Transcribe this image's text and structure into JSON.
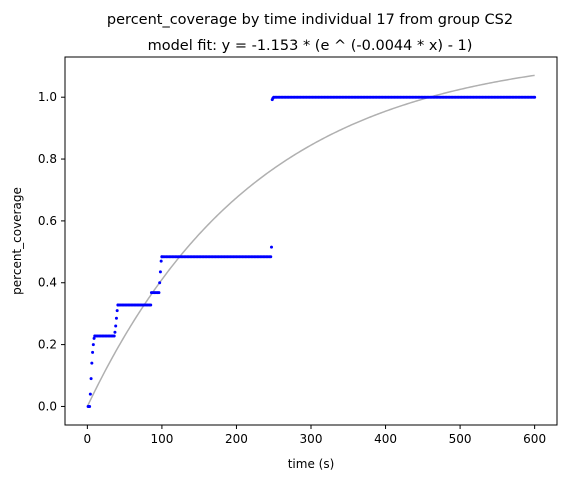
{
  "chart_data": {
    "type": "scatter",
    "title": "percent_coverage by time individual 17 from group CS2",
    "subtitle": "model fit: y = -1.153 * (e ^ (-0.0044 * x) - 1)",
    "xlabel": "time (s)",
    "ylabel": "percent_coverage",
    "xlim": [
      -30,
      630
    ],
    "ylim": [
      -0.06,
      1.13
    ],
    "xticks": [
      0,
      100,
      200,
      300,
      400,
      500,
      600
    ],
    "yticks": [
      0.0,
      0.2,
      0.4,
      0.6,
      0.8,
      1.0
    ],
    "xtick_labels": [
      "0",
      "100",
      "200",
      "300",
      "400",
      "500",
      "600"
    ],
    "ytick_labels": [
      "0.0",
      "0.2",
      "0.4",
      "0.6",
      "0.8",
      "1.0"
    ],
    "grid": false,
    "series": [
      {
        "kind": "points",
        "color": "#0000ff",
        "segments": [
          {
            "x": [
              1,
              2,
              3,
              4,
              5,
              6,
              7,
              8,
              9,
              10
            ],
            "y": [
              0.0,
              0.0,
              0.0,
              0.04,
              0.09,
              0.14,
              0.175,
              0.2,
              0.22,
              0.228
            ]
          },
          {
            "x_start": 10,
            "x_end": 36,
            "x_step": 2,
            "y": 0.228
          },
          {
            "x": [
              37,
              38,
              39,
              40,
              41
            ],
            "y": [
              0.24,
              0.26,
              0.285,
              0.31,
              0.328
            ]
          },
          {
            "x_start": 41,
            "x_end": 85,
            "x_step": 2,
            "y": 0.328
          },
          {
            "x_start": 86,
            "x_end": 96,
            "x_step": 2,
            "y": 0.368
          },
          {
            "x": [
              97,
              98,
              99,
              100
            ],
            "y": [
              0.4,
              0.435,
              0.47,
              0.484
            ]
          },
          {
            "x_start": 100,
            "x_end": 246,
            "x_step": 2,
            "y": 0.484
          },
          {
            "x": [
              247
            ],
            "y": [
              0.515
            ]
          },
          {
            "x": [
              248,
              249
            ],
            "y": [
              0.992,
              0.997
            ]
          },
          {
            "x_start": 250,
            "x_end": 600,
            "x_step": 2,
            "y": 1.0
          }
        ]
      },
      {
        "kind": "fit-curve",
        "color": "#b0b0b0",
        "model": {
          "a": -1.153,
          "b": -0.0044
        },
        "x_range": [
          0,
          600
        ]
      }
    ]
  }
}
